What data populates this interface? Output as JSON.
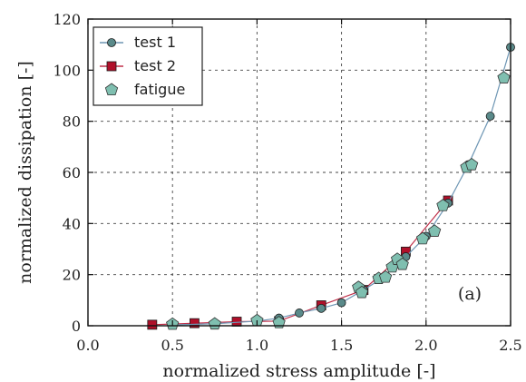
{
  "chart_data": {
    "type": "scatter",
    "xlabel": "normalized stress amplitude [-]",
    "ylabel": "normalized dissipation [-]",
    "xlim": [
      0.0,
      2.5
    ],
    "ylim": [
      0,
      120
    ],
    "xticks": [
      "0.0",
      "0.5",
      "1.0",
      "1.5",
      "2.0",
      "2.5"
    ],
    "yticks": [
      "0",
      "20",
      "40",
      "60",
      "80",
      "100",
      "120"
    ],
    "grid": true,
    "legend_position": "top-left",
    "annotation": "(a)",
    "series": [
      {
        "name": "test 1",
        "marker": "circle",
        "line": true,
        "color": "#5a8a8a",
        "line_color": "#6e96b4",
        "x": [
          0.5,
          0.75,
          1.0,
          1.13,
          1.25,
          1.38,
          1.5,
          1.63,
          1.75,
          1.88,
          2.0,
          2.13,
          2.25,
          2.38,
          2.5
        ],
        "y": [
          0.3,
          0.8,
          1.8,
          3.0,
          5.0,
          6.8,
          9.0,
          14.0,
          19.0,
          27.0,
          35.0,
          48.0,
          63.0,
          82.0,
          109.0
        ]
      },
      {
        "name": "test 2",
        "marker": "square",
        "line": true,
        "color": "#b0102a",
        "line_color": "#c0304a",
        "x": [
          0.38,
          0.63,
          0.88,
          1.13,
          1.38,
          1.63,
          1.88,
          2.13
        ],
        "y": [
          0.4,
          1.0,
          1.6,
          1.8,
          8.0,
          14.0,
          29.0,
          49.0
        ]
      },
      {
        "name": "fatigue",
        "marker": "pentagon",
        "line": false,
        "color": "#7fbfb0",
        "x": [
          0.5,
          0.75,
          1.0,
          1.13,
          1.6,
          1.62,
          1.72,
          1.76,
          1.8,
          1.83,
          1.86,
          1.98,
          2.05,
          2.1,
          2.24,
          2.27,
          2.46
        ],
        "y": [
          0.6,
          0.7,
          2.0,
          1.2,
          15.0,
          13.0,
          18.5,
          19.0,
          23.0,
          26.0,
          24.0,
          34.0,
          37.0,
          47.0,
          62.0,
          63.0,
          97.0
        ]
      }
    ]
  }
}
